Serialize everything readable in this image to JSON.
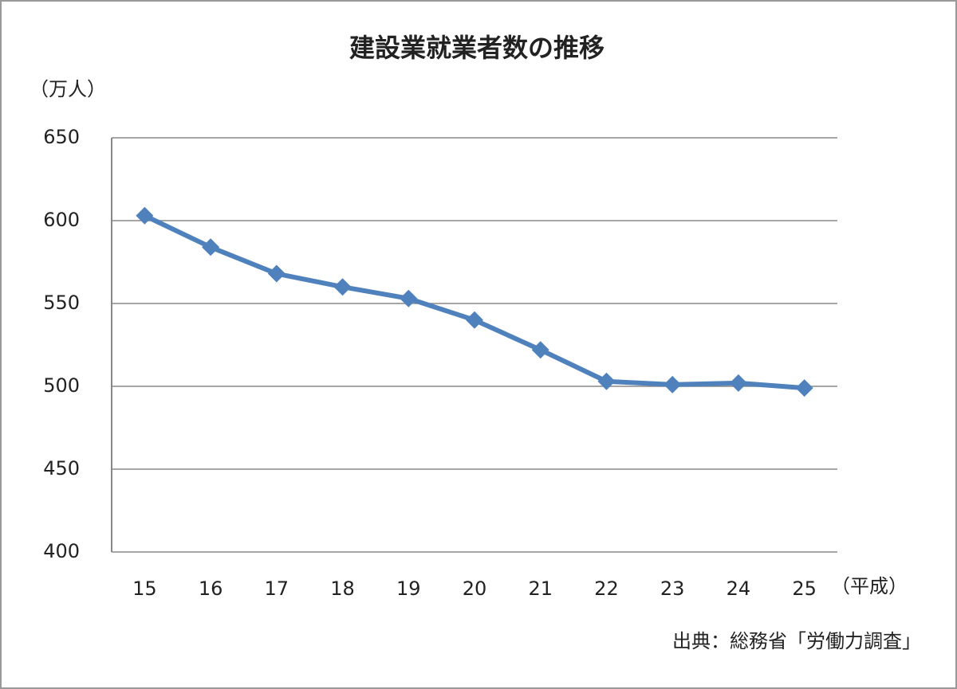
{
  "chart_data": {
    "type": "line",
    "title": "建設業就業者数の推移",
    "y_unit": "（万人）",
    "x_unit": "（平成）",
    "source": "出典：総務省「労働力調査」",
    "categories": [
      "15",
      "16",
      "17",
      "18",
      "19",
      "20",
      "21",
      "22",
      "23",
      "24",
      "25"
    ],
    "values": [
      603,
      584,
      568,
      560,
      553,
      540,
      522,
      503,
      501,
      502,
      499
    ],
    "color": "#4f81bd",
    "ylim": [
      400,
      650
    ],
    "yticks": [
      400,
      450,
      500,
      550,
      600,
      650
    ],
    "grid": true
  }
}
